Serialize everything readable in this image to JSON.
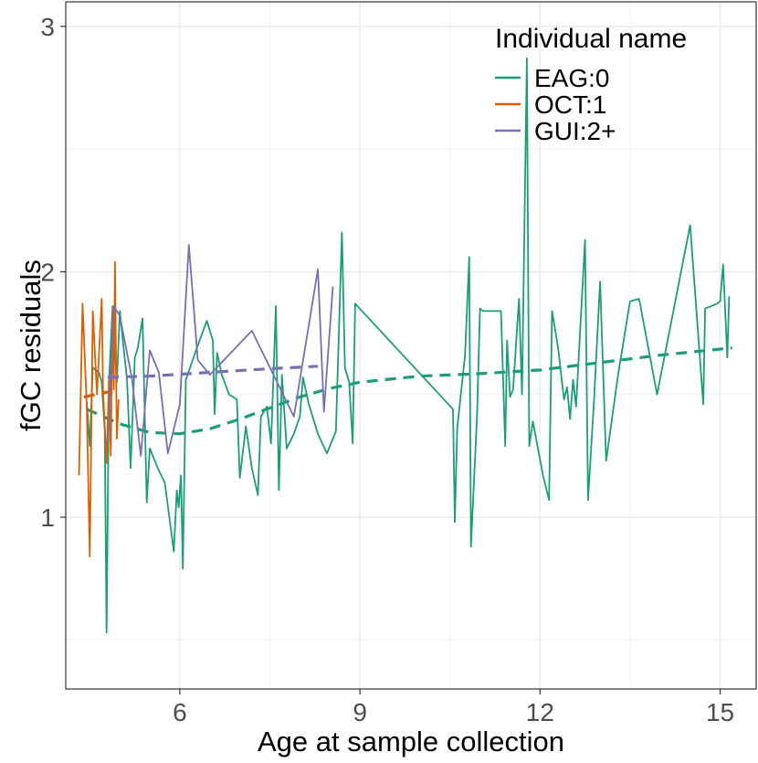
{
  "chart_data": {
    "type": "line",
    "title": "",
    "xlabel": "Age at sample collection",
    "ylabel": "fGC residuals",
    "xlim": [
      4.1,
      15.6
    ],
    "ylim": [
      0.3,
      3.1
    ],
    "x_ticks": [
      6,
      9,
      12,
      15
    ],
    "y_ticks": [
      1,
      2,
      3
    ],
    "grid": true,
    "legend": {
      "title": "Individual name",
      "position": "top-right"
    },
    "series": [
      {
        "name": "EAG:0",
        "color": "#1B9E77",
        "points": [
          [
            4.45,
            1.47
          ],
          [
            4.5,
            1.29
          ],
          [
            4.55,
            1.61
          ],
          [
            4.6,
            1.6
          ],
          [
            4.65,
            1.59
          ],
          [
            4.7,
            1.55
          ],
          [
            4.75,
            1.35
          ],
          [
            4.78,
            0.53
          ],
          [
            4.82,
            1.55
          ],
          [
            4.88,
            1.86
          ],
          [
            4.95,
            1.55
          ],
          [
            5.0,
            1.84
          ],
          [
            5.05,
            1.72
          ],
          [
            5.12,
            1.56
          ],
          [
            5.18,
            1.2
          ],
          [
            5.25,
            1.65
          ],
          [
            5.3,
            1.69
          ],
          [
            5.38,
            1.81
          ],
          [
            5.45,
            1.06
          ],
          [
            5.5,
            1.28
          ],
          [
            5.65,
            1.19
          ],
          [
            5.75,
            1.14
          ],
          [
            5.9,
            0.86
          ],
          [
            5.95,
            1.11
          ],
          [
            5.98,
            1.04
          ],
          [
            6.02,
            1.17
          ],
          [
            6.05,
            0.79
          ],
          [
            6.1,
            1.56
          ],
          [
            6.3,
            1.7
          ],
          [
            6.45,
            1.8
          ],
          [
            6.55,
            1.72
          ],
          [
            6.58,
            1.42
          ],
          [
            6.62,
            1.67
          ],
          [
            6.7,
            1.58
          ],
          [
            6.82,
            1.5
          ],
          [
            6.95,
            1.48
          ],
          [
            7.0,
            1.16
          ],
          [
            7.1,
            1.37
          ],
          [
            7.2,
            1.2
          ],
          [
            7.3,
            1.09
          ],
          [
            7.35,
            1.41
          ],
          [
            7.45,
            1.45
          ],
          [
            7.52,
            1.3
          ],
          [
            7.6,
            1.86
          ],
          [
            7.65,
            1.11
          ],
          [
            7.7,
            1.58
          ],
          [
            7.78,
            1.28
          ],
          [
            7.9,
            1.34
          ],
          [
            8.0,
            1.41
          ],
          [
            8.05,
            1.57
          ],
          [
            8.15,
            1.46
          ],
          [
            8.3,
            1.34
          ],
          [
            8.45,
            1.26
          ],
          [
            8.6,
            1.35
          ],
          [
            8.7,
            2.16
          ],
          [
            8.75,
            1.61
          ],
          [
            8.82,
            1.55
          ],
          [
            8.88,
            1.3
          ],
          [
            8.92,
            1.87
          ],
          [
            10.55,
            1.44
          ],
          [
            10.58,
            0.98
          ],
          [
            10.62,
            1.36
          ],
          [
            10.75,
            1.66
          ],
          [
            10.82,
            2.06
          ],
          [
            10.85,
            0.88
          ],
          [
            10.95,
            1.41
          ],
          [
            11.0,
            1.85
          ],
          [
            11.05,
            1.84
          ],
          [
            11.35,
            1.84
          ],
          [
            11.42,
            1.29
          ],
          [
            11.45,
            1.72
          ],
          [
            11.5,
            1.49
          ],
          [
            11.55,
            1.52
          ],
          [
            11.65,
            1.89
          ],
          [
            11.7,
            1.5
          ],
          [
            11.78,
            2.87
          ],
          [
            11.82,
            1.29
          ],
          [
            11.88,
            1.39
          ],
          [
            12.05,
            1.17
          ],
          [
            12.15,
            1.07
          ],
          [
            12.2,
            1.84
          ],
          [
            12.3,
            1.69
          ],
          [
            12.4,
            1.48
          ],
          [
            12.45,
            1.53
          ],
          [
            12.5,
            1.4
          ],
          [
            12.55,
            1.56
          ],
          [
            12.6,
            1.45
          ],
          [
            12.75,
            2.13
          ],
          [
            12.8,
            1.07
          ],
          [
            12.9,
            1.48
          ],
          [
            13.0,
            1.96
          ],
          [
            13.1,
            1.23
          ],
          [
            13.3,
            1.58
          ],
          [
            13.5,
            1.88
          ],
          [
            13.65,
            1.89
          ],
          [
            13.95,
            1.5
          ],
          [
            14.5,
            2.19
          ],
          [
            14.72,
            1.46
          ],
          [
            14.75,
            1.85
          ],
          [
            14.95,
            1.87
          ],
          [
            15.0,
            1.88
          ],
          [
            15.05,
            2.03
          ],
          [
            15.12,
            1.65
          ],
          [
            15.15,
            1.9
          ]
        ],
        "trend": [
          [
            4.45,
            1.44
          ],
          [
            5.0,
            1.38
          ],
          [
            5.5,
            1.345
          ],
          [
            6.0,
            1.34
          ],
          [
            6.5,
            1.36
          ],
          [
            7.0,
            1.4
          ],
          [
            7.5,
            1.445
          ],
          [
            8.0,
            1.49
          ],
          [
            8.5,
            1.525
          ],
          [
            9.0,
            1.55
          ],
          [
            10.0,
            1.575
          ],
          [
            11.0,
            1.585
          ],
          [
            12.0,
            1.6
          ],
          [
            13.0,
            1.63
          ],
          [
            14.0,
            1.66
          ],
          [
            15.2,
            1.69
          ]
        ]
      },
      {
        "name": "OCT:1",
        "color": "#D95F02",
        "points": [
          [
            4.32,
            1.17
          ],
          [
            4.38,
            1.87
          ],
          [
            4.45,
            1.45
          ],
          [
            4.5,
            0.84
          ],
          [
            4.55,
            1.84
          ],
          [
            4.62,
            1.5
          ],
          [
            4.7,
            1.89
          ],
          [
            4.72,
            1.52
          ],
          [
            4.78,
            1.22
          ],
          [
            4.82,
            1.56
          ],
          [
            4.85,
            1.25
          ],
          [
            4.88,
            1.85
          ],
          [
            4.9,
            1.52
          ],
          [
            4.92,
            2.04
          ],
          [
            4.95,
            1.32
          ],
          [
            4.98,
            1.48
          ]
        ],
        "trend": [
          [
            4.4,
            1.49
          ],
          [
            4.6,
            1.5
          ],
          [
            4.8,
            1.51
          ],
          [
            4.98,
            1.52
          ]
        ]
      },
      {
        "name": "GUI:2+",
        "color": "#7570B3",
        "points": [
          [
            4.8,
            1.3
          ],
          [
            4.9,
            1.86
          ],
          [
            5.0,
            1.82
          ],
          [
            5.2,
            1.57
          ],
          [
            5.35,
            1.25
          ],
          [
            5.5,
            1.68
          ],
          [
            5.65,
            1.59
          ],
          [
            5.8,
            1.26
          ],
          [
            6.0,
            1.46
          ],
          [
            6.15,
            2.11
          ],
          [
            6.3,
            1.64
          ],
          [
            6.5,
            1.58
          ],
          [
            7.2,
            1.76
          ],
          [
            7.9,
            1.41
          ],
          [
            8.3,
            2.01
          ],
          [
            8.4,
            1.43
          ],
          [
            8.55,
            1.94
          ]
        ],
        "trend": [
          [
            4.8,
            1.57
          ],
          [
            5.5,
            1.575
          ],
          [
            6.5,
            1.59
          ],
          [
            7.5,
            1.605
          ],
          [
            8.3,
            1.615
          ]
        ]
      }
    ]
  }
}
